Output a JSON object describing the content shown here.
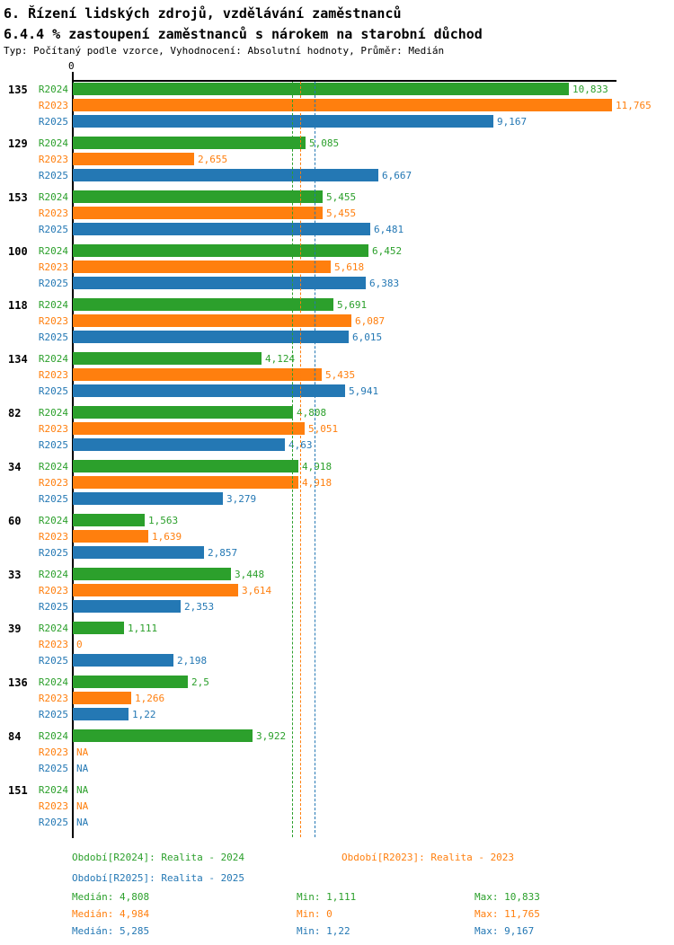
{
  "header": {
    "title": "6. Řízení lidských zdrojů, vzdělávání zaměstnanců",
    "subtitle": "6.4.4 % zastoupení zaměstnanců s nárokem na starobní důchod",
    "meta": "Typ: Počítaný podle vzorce, Vyhodnocení: Absolutní hodnoty, Průměr: Medián"
  },
  "colors": {
    "R2024": "#2ca02c",
    "R2023": "#ff7f0e",
    "R2025": "#2478b4",
    "axis": "#000000"
  },
  "axis": {
    "zero_label": "0"
  },
  "chart_data": {
    "type": "bar",
    "orientation": "horizontal",
    "title": "6.4.4 % zastoupení zaměstnanců s nárokem na starobní důchod",
    "xlabel": "",
    "ylabel": "",
    "xlim": [
      0,
      11.8
    ],
    "grid": false,
    "legend_position": "bottom",
    "series_order": [
      "R2024",
      "R2023",
      "R2025"
    ],
    "groups": [
      {
        "id": "135",
        "bars": [
          {
            "series": "R2024",
            "value": 10.833,
            "label": "10,833"
          },
          {
            "series": "R2023",
            "value": 11.765,
            "label": "11,765"
          },
          {
            "series": "R2025",
            "value": 9.167,
            "label": "9,167"
          }
        ]
      },
      {
        "id": "129",
        "bars": [
          {
            "series": "R2024",
            "value": 5.085,
            "label": "5,085"
          },
          {
            "series": "R2023",
            "value": 2.655,
            "label": "2,655"
          },
          {
            "series": "R2025",
            "value": 6.667,
            "label": "6,667"
          }
        ]
      },
      {
        "id": "153",
        "bars": [
          {
            "series": "R2024",
            "value": 5.455,
            "label": "5,455"
          },
          {
            "series": "R2023",
            "value": 5.455,
            "label": "5,455"
          },
          {
            "series": "R2025",
            "value": 6.481,
            "label": "6,481"
          }
        ]
      },
      {
        "id": "100",
        "bars": [
          {
            "series": "R2024",
            "value": 6.452,
            "label": "6,452"
          },
          {
            "series": "R2023",
            "value": 5.618,
            "label": "5,618"
          },
          {
            "series": "R2025",
            "value": 6.383,
            "label": "6,383"
          }
        ]
      },
      {
        "id": "118",
        "bars": [
          {
            "series": "R2024",
            "value": 5.691,
            "label": "5,691"
          },
          {
            "series": "R2023",
            "value": 6.087,
            "label": "6,087"
          },
          {
            "series": "R2025",
            "value": 6.015,
            "label": "6,015"
          }
        ]
      },
      {
        "id": "134",
        "bars": [
          {
            "series": "R2024",
            "value": 4.124,
            "label": "4,124"
          },
          {
            "series": "R2023",
            "value": 5.435,
            "label": "5,435"
          },
          {
            "series": "R2025",
            "value": 5.941,
            "label": "5,941"
          }
        ]
      },
      {
        "id": "82",
        "bars": [
          {
            "series": "R2024",
            "value": 4.808,
            "label": "4,808"
          },
          {
            "series": "R2023",
            "value": 5.051,
            "label": "5,051"
          },
          {
            "series": "R2025",
            "value": 4.63,
            "label": "4,63"
          }
        ]
      },
      {
        "id": "34",
        "bars": [
          {
            "series": "R2024",
            "value": 4.918,
            "label": "4,918"
          },
          {
            "series": "R2023",
            "value": 4.918,
            "label": "4,918"
          },
          {
            "series": "R2025",
            "value": 3.279,
            "label": "3,279"
          }
        ]
      },
      {
        "id": "60",
        "bars": [
          {
            "series": "R2024",
            "value": 1.563,
            "label": "1,563"
          },
          {
            "series": "R2023",
            "value": 1.639,
            "label": "1,639"
          },
          {
            "series": "R2025",
            "value": 2.857,
            "label": "2,857"
          }
        ]
      },
      {
        "id": "33",
        "bars": [
          {
            "series": "R2024",
            "value": 3.448,
            "label": "3,448"
          },
          {
            "series": "R2023",
            "value": 3.614,
            "label": "3,614"
          },
          {
            "series": "R2025",
            "value": 2.353,
            "label": "2,353"
          }
        ]
      },
      {
        "id": "39",
        "bars": [
          {
            "series": "R2024",
            "value": 1.111,
            "label": "1,111"
          },
          {
            "series": "R2023",
            "value": 0,
            "label": "0"
          },
          {
            "series": "R2025",
            "value": 2.198,
            "label": "2,198"
          }
        ]
      },
      {
        "id": "136",
        "bars": [
          {
            "series": "R2024",
            "value": 2.5,
            "label": "2,5"
          },
          {
            "series": "R2023",
            "value": 1.266,
            "label": "1,266"
          },
          {
            "series": "R2025",
            "value": 1.22,
            "label": "1,22"
          }
        ]
      },
      {
        "id": "84",
        "bars": [
          {
            "series": "R2024",
            "value": 3.922,
            "label": "3,922"
          },
          {
            "series": "R2023",
            "value": null,
            "label": "NA"
          },
          {
            "series": "R2025",
            "value": null,
            "label": "NA"
          }
        ]
      },
      {
        "id": "151",
        "bars": [
          {
            "series": "R2024",
            "value": null,
            "label": "NA"
          },
          {
            "series": "R2023",
            "value": null,
            "label": "NA"
          },
          {
            "series": "R2025",
            "value": null,
            "label": "NA"
          }
        ]
      }
    ],
    "medians": [
      {
        "series": "R2024",
        "value": 4.808
      },
      {
        "series": "R2023",
        "value": 4.984
      },
      {
        "series": "R2025",
        "value": 5.285
      }
    ]
  },
  "footer": {
    "periods": [
      {
        "series": "R2024",
        "label": "Období[R2024]: Realita - 2024",
        "col": 0,
        "row": 0
      },
      {
        "series": "R2023",
        "label": "Období[R2023]: Realita - 2023",
        "col": 1,
        "row": 0
      },
      {
        "series": "R2025",
        "label": "Období[R2025]: Realita - 2025",
        "col": 0,
        "row": 1
      }
    ],
    "stats": [
      {
        "series": "R2024",
        "median": "Medián: 4,808",
        "min": "Min: 1,111",
        "max": "Max: 10,833"
      },
      {
        "series": "R2023",
        "median": "Medián: 4,984",
        "min": "Min: 0",
        "max": "Max: 11,765"
      },
      {
        "series": "R2025",
        "median": "Medián: 5,285",
        "min": "Min: 1,22",
        "max": "Max: 9,167"
      }
    ]
  }
}
